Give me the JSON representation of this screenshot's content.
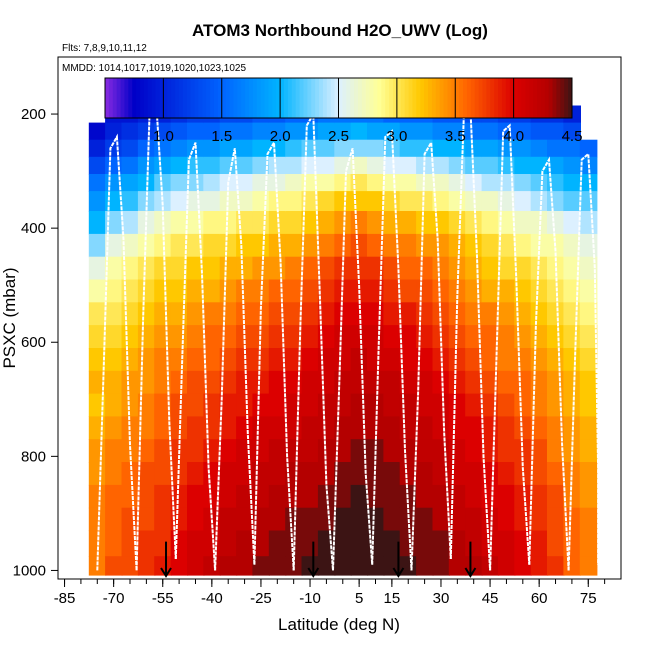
{
  "chart_data": {
    "type": "heatmap",
    "title": "ATOM3 Northbound H2O_UWV (Log)",
    "flights_label": "Flts: 7,8,9,10,11,12",
    "dates_label": "MMDD: 1014,1017,1019,1020,1023,1025",
    "xlabel": "Latitude (deg N)",
    "ylabel": "PSXC (mbar)",
    "xlim": [
      -87,
      85
    ],
    "ylim": [
      1015,
      100
    ],
    "x_ticks": [
      -85,
      -70,
      -55,
      -40,
      -25,
      -10,
      5,
      15,
      30,
      45,
      60,
      75
    ],
    "x_tick_labels": [
      "-85",
      "-70",
      "-55",
      "-40",
      "-25",
      "-10",
      "5",
      "15",
      "30",
      "45",
      "60",
      "75"
    ],
    "y_ticks": [
      200,
      400,
      600,
      800,
      1000
    ],
    "y_tick_labels": [
      "200",
      "400",
      "600",
      "800",
      "1000"
    ],
    "colorbar": {
      "min": 0.5,
      "max": 4.5,
      "ticks": [
        1.0,
        1.5,
        2.0,
        2.5,
        3.0,
        3.5,
        4.0,
        4.5
      ],
      "tick_labels": [
        "1.0",
        "1.5",
        "2.0",
        "2.5",
        "3.0",
        "3.5",
        "4.0",
        "4.5"
      ],
      "stops": [
        {
          "v": 0.5,
          "c": "#8a2be2"
        },
        {
          "v": 0.75,
          "c": "#0000c8"
        },
        {
          "v": 1.5,
          "c": "#0064ff"
        },
        {
          "v": 2.0,
          "c": "#00b4ff"
        },
        {
          "v": 2.5,
          "c": "#dcf0ff"
        },
        {
          "v": 2.85,
          "c": "#ffff96"
        },
        {
          "v": 3.2,
          "c": "#ffc800"
        },
        {
          "v": 3.6,
          "c": "#ff6400"
        },
        {
          "v": 4.0,
          "c": "#dc0000"
        },
        {
          "v": 4.3,
          "c": "#b40000"
        },
        {
          "v": 4.5,
          "c": "#3c1414"
        }
      ]
    },
    "pressure_levels": [
      200,
      230,
      260,
      290,
      320,
      350,
      390,
      430,
      470,
      510,
      550,
      590,
      630,
      670,
      710,
      750,
      790,
      830,
      870,
      910,
      950,
      1000
    ],
    "latitude_columns": [
      {
        "lat": -75,
        "values": [
          null,
          0.8,
          1.0,
          1.3,
          1.6,
          1.8,
          2.0,
          2.3,
          2.6,
          2.8,
          3.0,
          3.1,
          3.2,
          3.3,
          3.2,
          3.3,
          3.4,
          3.4,
          3.5,
          3.5,
          3.5,
          3.5
        ]
      },
      {
        "lat": -70,
        "values": [
          0.9,
          1.0,
          1.2,
          1.5,
          1.8,
          2.0,
          2.3,
          2.6,
          2.8,
          2.9,
          3.0,
          3.1,
          3.2,
          3.3,
          3.3,
          3.4,
          3.5,
          3.5,
          3.6,
          3.6,
          3.6,
          3.7
        ]
      },
      {
        "lat": -65,
        "values": [
          0.9,
          1.1,
          1.3,
          1.6,
          1.9,
          2.1,
          2.4,
          2.7,
          2.9,
          3.0,
          3.1,
          3.2,
          3.3,
          3.4,
          3.4,
          3.5,
          3.5,
          3.6,
          3.6,
          3.7,
          3.7,
          3.7
        ]
      },
      {
        "lat": -60,
        "values": [
          1.0,
          1.2,
          1.5,
          1.8,
          2.0,
          2.3,
          2.6,
          2.8,
          3.0,
          3.1,
          3.2,
          3.3,
          3.4,
          3.4,
          3.5,
          3.5,
          3.6,
          3.7,
          3.7,
          3.7,
          3.8,
          3.8
        ]
      },
      {
        "lat": -55,
        "values": [
          1.0,
          1.3,
          1.6,
          1.9,
          2.2,
          2.4,
          2.7,
          2.9,
          3.1,
          3.2,
          3.3,
          3.4,
          3.5,
          3.5,
          3.6,
          3.6,
          3.7,
          3.7,
          3.8,
          3.8,
          3.8,
          3.9
        ]
      },
      {
        "lat": -50,
        "values": [
          1.1,
          1.4,
          1.7,
          2.0,
          2.3,
          2.5,
          2.8,
          3.0,
          3.1,
          3.2,
          3.3,
          3.4,
          3.5,
          3.6,
          3.7,
          3.7,
          3.8,
          3.8,
          3.9,
          3.9,
          4.0,
          4.0
        ]
      },
      {
        "lat": -45,
        "values": [
          1.2,
          1.5,
          1.8,
          2.1,
          2.3,
          2.6,
          2.8,
          3.0,
          3.2,
          3.3,
          3.4,
          3.5,
          3.6,
          3.7,
          3.7,
          3.8,
          3.8,
          3.9,
          4.0,
          4.0,
          4.1,
          4.1
        ]
      },
      {
        "lat": -40,
        "values": [
          1.2,
          1.5,
          1.8,
          2.1,
          2.4,
          2.6,
          2.9,
          3.1,
          3.2,
          3.3,
          3.5,
          3.6,
          3.6,
          3.7,
          3.8,
          3.8,
          3.9,
          4.0,
          4.0,
          4.1,
          4.1,
          4.2
        ]
      },
      {
        "lat": -35,
        "values": [
          1.3,
          1.6,
          1.9,
          2.2,
          2.5,
          2.7,
          2.9,
          3.1,
          3.3,
          3.4,
          3.5,
          3.6,
          3.7,
          3.8,
          3.9,
          3.9,
          4.0,
          4.1,
          4.1,
          4.2,
          4.2,
          4.3
        ]
      },
      {
        "lat": -30,
        "values": [
          1.3,
          1.6,
          1.9,
          2.2,
          2.5,
          2.7,
          3.0,
          3.2,
          3.3,
          3.5,
          3.6,
          3.7,
          3.8,
          3.9,
          3.9,
          4.0,
          4.1,
          4.1,
          4.2,
          4.2,
          4.3,
          4.3
        ]
      },
      {
        "lat": -25,
        "values": [
          1.4,
          1.7,
          2.0,
          2.3,
          2.6,
          2.8,
          3.0,
          3.2,
          3.4,
          3.5,
          3.6,
          3.7,
          3.8,
          3.9,
          4.0,
          4.1,
          4.1,
          4.2,
          4.2,
          4.3,
          4.3,
          4.4
        ]
      },
      {
        "lat": -20,
        "values": [
          1.4,
          1.7,
          2.0,
          2.4,
          2.6,
          2.9,
          3.1,
          3.3,
          3.4,
          3.6,
          3.7,
          3.8,
          3.9,
          4.0,
          4.0,
          4.1,
          4.2,
          4.2,
          4.3,
          4.3,
          4.4,
          4.4
        ]
      },
      {
        "lat": -15,
        "values": [
          1.5,
          1.8,
          2.1,
          2.4,
          2.7,
          2.9,
          3.1,
          3.3,
          3.5,
          3.6,
          3.7,
          3.8,
          3.9,
          4.0,
          4.1,
          4.1,
          4.2,
          4.3,
          4.3,
          4.4,
          4.4,
          4.4
        ]
      },
      {
        "lat": -10,
        "values": [
          1.5,
          1.8,
          2.2,
          2.5,
          2.8,
          3.0,
          3.2,
          3.4,
          3.6,
          3.7,
          3.8,
          3.9,
          4.0,
          4.1,
          4.1,
          4.2,
          4.2,
          4.3,
          4.3,
          4.4,
          4.4,
          4.5
        ]
      },
      {
        "lat": -5,
        "values": [
          1.6,
          1.9,
          2.2,
          2.5,
          2.8,
          3.1,
          3.3,
          3.5,
          3.7,
          3.8,
          3.9,
          4.0,
          4.1,
          4.1,
          4.2,
          4.2,
          4.3,
          4.3,
          4.4,
          4.4,
          4.5,
          4.5
        ]
      },
      {
        "lat": 0,
        "values": [
          1.6,
          1.9,
          2.3,
          2.6,
          2.9,
          3.2,
          3.4,
          3.6,
          3.8,
          3.9,
          4.0,
          4.1,
          4.1,
          4.2,
          4.2,
          4.3,
          4.3,
          4.4,
          4.4,
          4.5,
          4.5,
          4.5
        ]
      },
      {
        "lat": 5,
        "values": [
          1.6,
          2.0,
          2.3,
          2.7,
          3.0,
          3.2,
          3.5,
          3.7,
          3.8,
          3.9,
          4.0,
          4.1,
          4.2,
          4.2,
          4.3,
          4.3,
          4.4,
          4.4,
          4.5,
          4.5,
          4.5,
          4.5
        ]
      },
      {
        "lat": 10,
        "values": [
          1.6,
          1.9,
          2.3,
          2.6,
          2.9,
          3.2,
          3.4,
          3.6,
          3.8,
          3.9,
          4.0,
          4.1,
          4.1,
          4.2,
          4.3,
          4.3,
          4.4,
          4.4,
          4.4,
          4.5,
          4.5,
          4.5
        ]
      },
      {
        "lat": 15,
        "values": [
          1.5,
          1.9,
          2.2,
          2.5,
          2.8,
          3.1,
          3.3,
          3.5,
          3.7,
          3.8,
          3.9,
          4.0,
          4.1,
          4.2,
          4.2,
          4.3,
          4.3,
          4.4,
          4.4,
          4.4,
          4.5,
          4.5
        ]
      },
      {
        "lat": 20,
        "values": [
          1.5,
          1.8,
          2.1,
          2.5,
          2.8,
          3.0,
          3.3,
          3.5,
          3.6,
          3.7,
          3.9,
          4.0,
          4.0,
          4.1,
          4.2,
          4.2,
          4.3,
          4.3,
          4.4,
          4.4,
          4.4,
          4.5
        ]
      },
      {
        "lat": 25,
        "values": [
          1.5,
          1.8,
          2.1,
          2.4,
          2.7,
          3.0,
          3.2,
          3.4,
          3.6,
          3.7,
          3.8,
          3.9,
          4.0,
          4.1,
          4.1,
          4.2,
          4.2,
          4.3,
          4.3,
          4.4,
          4.4,
          4.4
        ]
      },
      {
        "lat": 30,
        "values": [
          1.4,
          1.7,
          2.0,
          2.4,
          2.7,
          2.9,
          3.2,
          3.4,
          3.5,
          3.6,
          3.7,
          3.8,
          3.9,
          4.0,
          4.1,
          4.1,
          4.2,
          4.2,
          4.3,
          4.3,
          4.4,
          4.4
        ]
      },
      {
        "lat": 35,
        "values": [
          1.4,
          1.7,
          2.0,
          2.3,
          2.6,
          2.8,
          3.1,
          3.3,
          3.4,
          3.5,
          3.6,
          3.7,
          3.8,
          3.9,
          4.0,
          4.0,
          4.1,
          4.1,
          4.2,
          4.2,
          4.3,
          4.3
        ]
      },
      {
        "lat": 40,
        "values": [
          1.3,
          1.6,
          1.9,
          2.2,
          2.5,
          2.7,
          3.0,
          3.2,
          3.3,
          3.4,
          3.5,
          3.6,
          3.7,
          3.8,
          3.9,
          4.0,
          4.0,
          4.1,
          4.1,
          4.2,
          4.2,
          4.3
        ]
      },
      {
        "lat": 45,
        "values": [
          1.3,
          1.6,
          1.9,
          2.2,
          2.4,
          2.7,
          2.9,
          3.1,
          3.2,
          3.3,
          3.5,
          3.6,
          3.6,
          3.7,
          3.8,
          3.9,
          3.9,
          4.0,
          4.0,
          4.1,
          4.1,
          4.2
        ]
      },
      {
        "lat": 50,
        "values": [
          1.2,
          1.5,
          1.8,
          2.1,
          2.4,
          2.6,
          2.8,
          3.0,
          3.1,
          3.3,
          3.4,
          3.5,
          3.5,
          3.6,
          3.7,
          3.8,
          3.8,
          3.9,
          4.0,
          4.0,
          4.1,
          4.1
        ]
      },
      {
        "lat": 55,
        "values": [
          1.2,
          1.5,
          1.8,
          2.0,
          2.3,
          2.5,
          2.7,
          2.9,
          3.1,
          3.2,
          3.3,
          3.4,
          3.5,
          3.6,
          3.6,
          3.7,
          3.8,
          3.8,
          3.9,
          3.9,
          4.0,
          4.0
        ]
      },
      {
        "lat": 60,
        "values": [
          1.1,
          1.4,
          1.7,
          2.0,
          2.2,
          2.4,
          2.7,
          2.8,
          3.0,
          3.1,
          3.2,
          3.3,
          3.4,
          3.5,
          3.5,
          3.6,
          3.7,
          3.7,
          3.8,
          3.8,
          3.9,
          3.9
        ]
      },
      {
        "lat": 65,
        "values": [
          1.1,
          1.4,
          1.6,
          1.9,
          2.1,
          2.3,
          2.6,
          2.8,
          2.9,
          3.0,
          3.1,
          3.2,
          3.3,
          3.4,
          3.4,
          3.5,
          3.5,
          3.6,
          3.7,
          3.7,
          3.7,
          3.8
        ]
      },
      {
        "lat": 70,
        "values": [
          1.0,
          1.3,
          1.6,
          1.8,
          2.0,
          2.2,
          2.5,
          2.7,
          2.8,
          2.9,
          3.0,
          3.1,
          3.2,
          3.3,
          3.3,
          3.4,
          3.4,
          3.5,
          3.5,
          3.6,
          3.6,
          3.6
        ]
      },
      {
        "lat": 75,
        "values": [
          null,
          null,
          1.5,
          1.7,
          2.0,
          2.2,
          2.4,
          2.6,
          2.7,
          2.8,
          2.9,
          3.0,
          3.1,
          3.2,
          3.2,
          3.3,
          3.3,
          3.4,
          3.4,
          3.5,
          3.5,
          3.5
        ]
      }
    ],
    "flight_profiles": [
      {
        "lats": [
          -75,
          -73,
          -71,
          -69,
          -67,
          -65,
          -63
        ],
        "pressures": [
          1000,
          640,
          260,
          240,
          420,
          780,
          1000
        ]
      },
      {
        "lats": [
          -63,
          -61,
          -59,
          -57,
          -55,
          -53,
          -51
        ],
        "pressures": [
          1000,
          560,
          190,
          180,
          360,
          740,
          980
        ]
      },
      {
        "lats": [
          -51,
          -49,
          -47,
          -45,
          -43,
          -41,
          -39
        ],
        "pressures": [
          980,
          620,
          280,
          250,
          480,
          820,
          1000
        ]
      },
      {
        "lats": [
          -39,
          -37,
          -35,
          -33,
          -31,
          -29,
          -27
        ],
        "pressures": [
          1000,
          700,
          320,
          260,
          430,
          760,
          990
        ]
      },
      {
        "lats": [
          -27,
          -25,
          -23,
          -21,
          -19,
          -17,
          -15
        ],
        "pressures": [
          990,
          540,
          270,
          250,
          460,
          800,
          1000
        ]
      },
      {
        "lats": [
          -15,
          -13,
          -11,
          -9,
          -7,
          -5,
          -3
        ],
        "pressures": [
          1000,
          580,
          220,
          200,
          520,
          850,
          1000
        ]
      },
      {
        "lats": [
          -3,
          -1,
          1,
          3,
          5,
          7,
          9
        ],
        "pressures": [
          1000,
          660,
          300,
          260,
          500,
          830,
          990
        ]
      },
      {
        "lats": [
          9,
          11,
          13,
          15,
          17,
          19,
          21
        ],
        "pressures": [
          990,
          600,
          240,
          230,
          470,
          790,
          1000
        ]
      },
      {
        "lats": [
          21,
          23,
          25,
          27,
          29,
          31,
          33
        ],
        "pressures": [
          1000,
          690,
          270,
          250,
          420,
          760,
          980
        ]
      },
      {
        "lats": [
          33,
          35,
          37,
          39,
          41,
          43,
          45
        ],
        "pressures": [
          980,
          520,
          200,
          190,
          450,
          800,
          1000
        ]
      },
      {
        "lats": [
          45,
          47,
          49,
          51,
          53,
          55,
          57
        ],
        "pressures": [
          1000,
          620,
          230,
          220,
          490,
          820,
          990
        ]
      },
      {
        "lats": [
          57,
          59,
          61,
          63,
          65,
          67,
          69
        ],
        "pressures": [
          990,
          570,
          300,
          280,
          440,
          780,
          1000
        ]
      },
      {
        "lats": [
          69,
          71,
          73,
          75,
          77,
          78,
          78
        ],
        "pressures": [
          1000,
          620,
          280,
          270,
          470,
          820,
          990
        ]
      }
    ],
    "arrows": [
      {
        "lat": -54,
        "pressure": 960
      },
      {
        "lat": -9,
        "pressure": 960
      },
      {
        "lat": 17,
        "pressure": 960
      },
      {
        "lat": 39,
        "pressure": 960
      }
    ]
  }
}
